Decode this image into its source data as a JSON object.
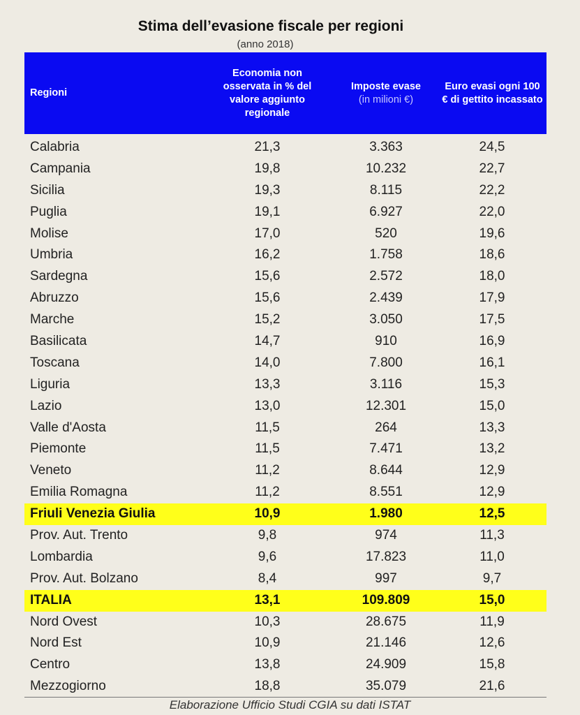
{
  "title": "Stima dell’evasione fiscale per regioni",
  "subtitle": "(anno 2018)",
  "header": {
    "col1": "Regioni",
    "col2": "Economia non osservata in % del valore aggiunto regionale",
    "col3": "Imposte evase",
    "col3_sub": "(in milioni €)",
    "col4": "Euro evasi ogni 100 € di gettito incassato"
  },
  "colors": {
    "header_bg": "#0a0af2",
    "highlight": "#ffff1a",
    "background": "#eeebe3"
  },
  "rows": [
    {
      "region": "Calabria",
      "eno": "21,3",
      "imposte": "3.363",
      "euro": "24,5"
    },
    {
      "region": "Campania",
      "eno": "19,8",
      "imposte": "10.232",
      "euro": "22,7"
    },
    {
      "region": "Sicilia",
      "eno": "19,3",
      "imposte": "8.115",
      "euro": "22,2"
    },
    {
      "region": "Puglia",
      "eno": "19,1",
      "imposte": "6.927",
      "euro": "22,0"
    },
    {
      "region": "Molise",
      "eno": "17,0",
      "imposte": "520",
      "euro": "19,6"
    },
    {
      "region": "Umbria",
      "eno": "16,2",
      "imposte": "1.758",
      "euro": "18,6"
    },
    {
      "region": "Sardegna",
      "eno": "15,6",
      "imposte": "2.572",
      "euro": "18,0"
    },
    {
      "region": "Abruzzo",
      "eno": "15,6",
      "imposte": "2.439",
      "euro": "17,9"
    },
    {
      "region": "Marche",
      "eno": "15,2",
      "imposte": "3.050",
      "euro": "17,5"
    },
    {
      "region": "Basilicata",
      "eno": "14,7",
      "imposte": "910",
      "euro": "16,9"
    },
    {
      "region": "Toscana",
      "eno": "14,0",
      "imposte": "7.800",
      "euro": "16,1"
    },
    {
      "region": "Liguria",
      "eno": "13,3",
      "imposte": "3.116",
      "euro": "15,3"
    },
    {
      "region": "Lazio",
      "eno": "13,0",
      "imposte": "12.301",
      "euro": "15,0"
    },
    {
      "region": "Valle d'Aosta",
      "eno": "11,5",
      "imposte": "264",
      "euro": "13,3"
    },
    {
      "region": "Piemonte",
      "eno": "11,5",
      "imposte": "7.471",
      "euro": "13,2"
    },
    {
      "region": "Veneto",
      "eno": "11,2",
      "imposte": "8.644",
      "euro": "12,9"
    },
    {
      "region": "Emilia Romagna",
      "eno": "11,2",
      "imposte": "8.551",
      "euro": "12,9"
    },
    {
      "region": "Friuli Venezia Giulia",
      "eno": "10,9",
      "imposte": "1.980",
      "euro": "12,5",
      "highlight": true
    },
    {
      "region": "Prov. Aut. Trento",
      "eno": "9,8",
      "imposte": "974",
      "euro": "11,3"
    },
    {
      "region": "Lombardia",
      "eno": "9,6",
      "imposte": "17.823",
      "euro": "11,0"
    },
    {
      "region": "Prov. Aut. Bolzano",
      "eno": "8,4",
      "imposte": "997",
      "euro": "9,7"
    },
    {
      "region": "ITALIA",
      "eno": "13,1",
      "imposte": "109.809",
      "euro": "15,0",
      "highlight": true
    },
    {
      "region": "Nord Ovest",
      "eno": "10,3",
      "imposte": "28.675",
      "euro": "11,9"
    },
    {
      "region": "Nord Est",
      "eno": "10,9",
      "imposte": "21.146",
      "euro": "12,6"
    },
    {
      "region": "Centro",
      "eno": "13,8",
      "imposte": "24.909",
      "euro": "15,8"
    },
    {
      "region": "Mezzogiorno",
      "eno": "18,8",
      "imposte": "35.079",
      "euro": "21,6"
    }
  ],
  "source": "Elaborazione Ufficio Studi CGIA su dati ISTAT"
}
